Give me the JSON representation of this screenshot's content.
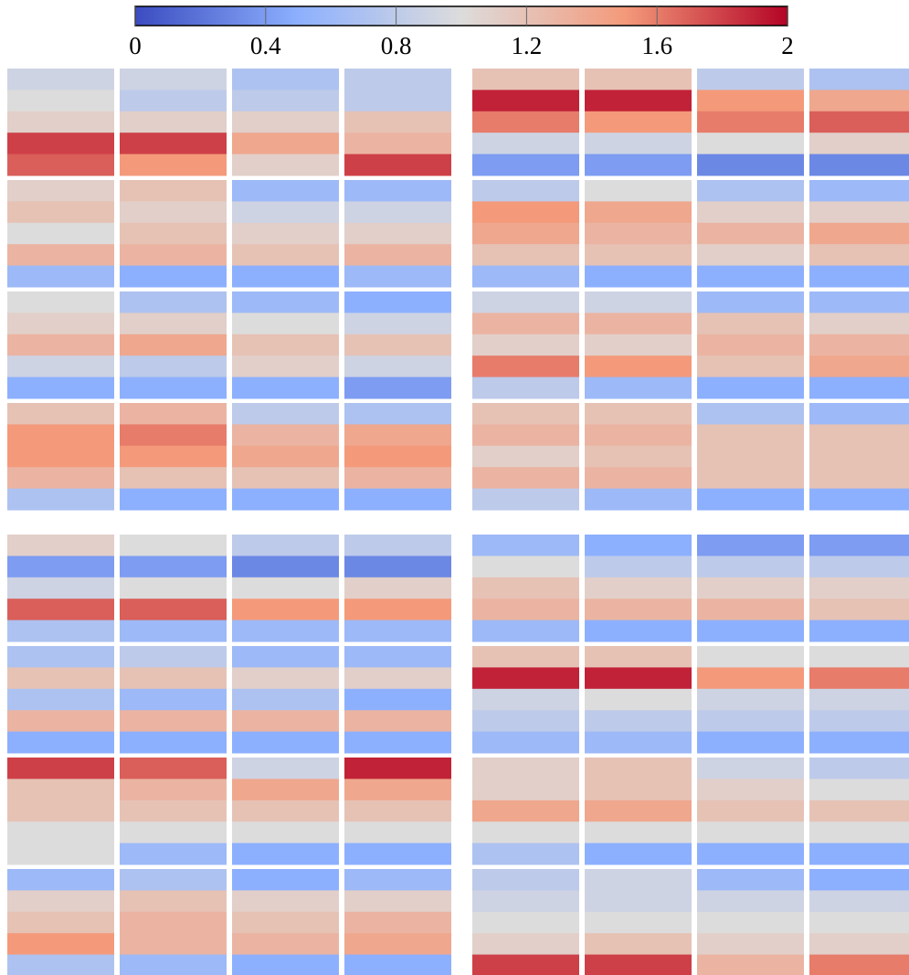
{
  "chart_data": {
    "type": "heatmap",
    "clim": [
      0,
      2
    ],
    "cticks": [
      0,
      0.4,
      0.8,
      1.2,
      1.6,
      2
    ],
    "colormap": [
      "#3b4cc0",
      "#8db0fe",
      "#dddcdc",
      "#f49a7b",
      "#b40426"
    ],
    "groups": [
      {
        "rows": [
          [
            [
              0.9,
              1.0,
              1.1,
              1.8,
              1.7
            ],
            [
              0.9,
              0.8,
              1.1,
              1.8,
              1.5
            ],
            [
              0.7,
              0.8,
              1.1,
              1.4,
              1.1
            ],
            [
              0.8,
              0.8,
              1.2,
              1.3,
              1.8
            ]
          ],
          [
            [
              1.1,
              1.2,
              1.0,
              1.3,
              0.6
            ],
            [
              1.2,
              1.1,
              1.2,
              1.3,
              0.5
            ],
            [
              0.6,
              0.9,
              1.1,
              1.2,
              0.5
            ],
            [
              0.6,
              0.9,
              1.1,
              1.3,
              0.6
            ]
          ],
          [
            [
              1.0,
              1.1,
              1.3,
              0.9,
              0.5
            ],
            [
              0.7,
              1.1,
              1.4,
              0.8,
              0.5
            ],
            [
              0.6,
              1.0,
              1.2,
              1.1,
              0.5
            ],
            [
              0.5,
              0.9,
              1.2,
              0.9,
              0.4
            ]
          ],
          [
            [
              1.2,
              1.5,
              1.5,
              1.3,
              0.7
            ],
            [
              1.3,
              1.6,
              1.5,
              1.2,
              0.5
            ],
            [
              0.8,
              1.3,
              1.4,
              1.2,
              0.5
            ],
            [
              0.7,
              1.4,
              1.5,
              1.3,
              0.5
            ]
          ]
        ]
      },
      {
        "rows": [
          [
            [
              1.2,
              1.9,
              1.6,
              0.9,
              0.4
            ],
            [
              1.2,
              1.9,
              1.5,
              0.9,
              0.4
            ],
            [
              0.8,
              1.5,
              1.6,
              1.0,
              0.3
            ],
            [
              0.7,
              1.4,
              1.7,
              1.1,
              0.3
            ]
          ],
          [
            [
              0.8,
              1.5,
              1.4,
              1.2,
              0.6
            ],
            [
              1.0,
              1.4,
              1.3,
              1.2,
              0.5
            ],
            [
              0.7,
              1.1,
              1.3,
              1.1,
              0.5
            ],
            [
              0.6,
              1.1,
              1.4,
              1.2,
              0.5
            ]
          ],
          [
            [
              0.9,
              1.3,
              1.1,
              1.6,
              0.8
            ],
            [
              0.9,
              1.3,
              1.1,
              1.5,
              0.6
            ],
            [
              0.6,
              1.2,
              1.3,
              1.2,
              0.5
            ],
            [
              0.6,
              1.1,
              1.3,
              1.4,
              0.5
            ]
          ],
          [
            [
              1.2,
              1.3,
              1.1,
              1.3,
              0.8
            ],
            [
              1.2,
              1.3,
              1.2,
              1.3,
              0.6
            ],
            [
              0.7,
              1.2,
              1.2,
              1.2,
              0.5
            ],
            [
              0.6,
              1.2,
              1.2,
              1.2,
              0.5
            ]
          ]
        ]
      },
      {
        "rows": [
          [
            [
              1.1,
              0.4,
              0.9,
              1.7,
              0.7
            ],
            [
              1.0,
              0.4,
              1.0,
              1.7,
              0.6
            ],
            [
              0.8,
              0.3,
              1.0,
              1.5,
              0.6
            ],
            [
              0.8,
              0.3,
              1.1,
              1.5,
              0.6
            ]
          ],
          [
            [
              0.7,
              1.2,
              0.7,
              1.3,
              0.5
            ],
            [
              0.8,
              1.2,
              0.6,
              1.3,
              0.5
            ],
            [
              0.6,
              1.1,
              0.7,
              1.3,
              0.5
            ],
            [
              0.6,
              1.1,
              0.5,
              1.3,
              0.5
            ]
          ],
          [
            [
              1.8,
              1.2,
              1.2,
              1.0,
              1.0
            ],
            [
              1.7,
              1.3,
              1.2,
              1.0,
              0.6
            ],
            [
              0.9,
              1.4,
              1.2,
              1.0,
              0.5
            ],
            [
              1.9,
              1.4,
              1.2,
              1.0,
              0.5
            ]
          ],
          [
            [
              0.6,
              1.1,
              1.2,
              1.5,
              0.7
            ],
            [
              0.7,
              1.2,
              1.3,
              1.3,
              0.6
            ],
            [
              0.5,
              1.1,
              1.2,
              1.3,
              0.5
            ],
            [
              0.6,
              1.1,
              1.3,
              1.4,
              0.5
            ]
          ]
        ]
      },
      {
        "rows": [
          [
            [
              0.6,
              1.0,
              1.2,
              1.3,
              0.6
            ],
            [
              0.5,
              0.8,
              1.1,
              1.3,
              0.5
            ],
            [
              0.4,
              0.8,
              1.1,
              1.3,
              0.5
            ],
            [
              0.4,
              0.8,
              1.1,
              1.2,
              0.5
            ]
          ],
          [
            [
              1.2,
              1.9,
              0.9,
              0.8,
              0.6
            ],
            [
              1.2,
              1.9,
              1.0,
              0.8,
              0.6
            ],
            [
              1.0,
              1.5,
              0.9,
              0.8,
              0.5
            ],
            [
              1.0,
              1.6,
              0.9,
              0.8,
              0.5
            ]
          ],
          [
            [
              1.1,
              1.1,
              1.4,
              1.0,
              0.7
            ],
            [
              1.2,
              1.2,
              1.4,
              1.0,
              0.5
            ],
            [
              0.9,
              1.1,
              1.2,
              1.0,
              0.5
            ],
            [
              0.8,
              1.0,
              1.2,
              1.0,
              0.5
            ]
          ],
          [
            [
              0.8,
              0.9,
              1.0,
              1.1,
              1.8
            ],
            [
              0.9,
              0.9,
              1.0,
              1.2,
              1.8
            ],
            [
              0.6,
              0.9,
              1.0,
              1.1,
              1.3
            ],
            [
              0.5,
              0.9,
              1.0,
              1.1,
              1.6
            ]
          ]
        ]
      }
    ]
  }
}
